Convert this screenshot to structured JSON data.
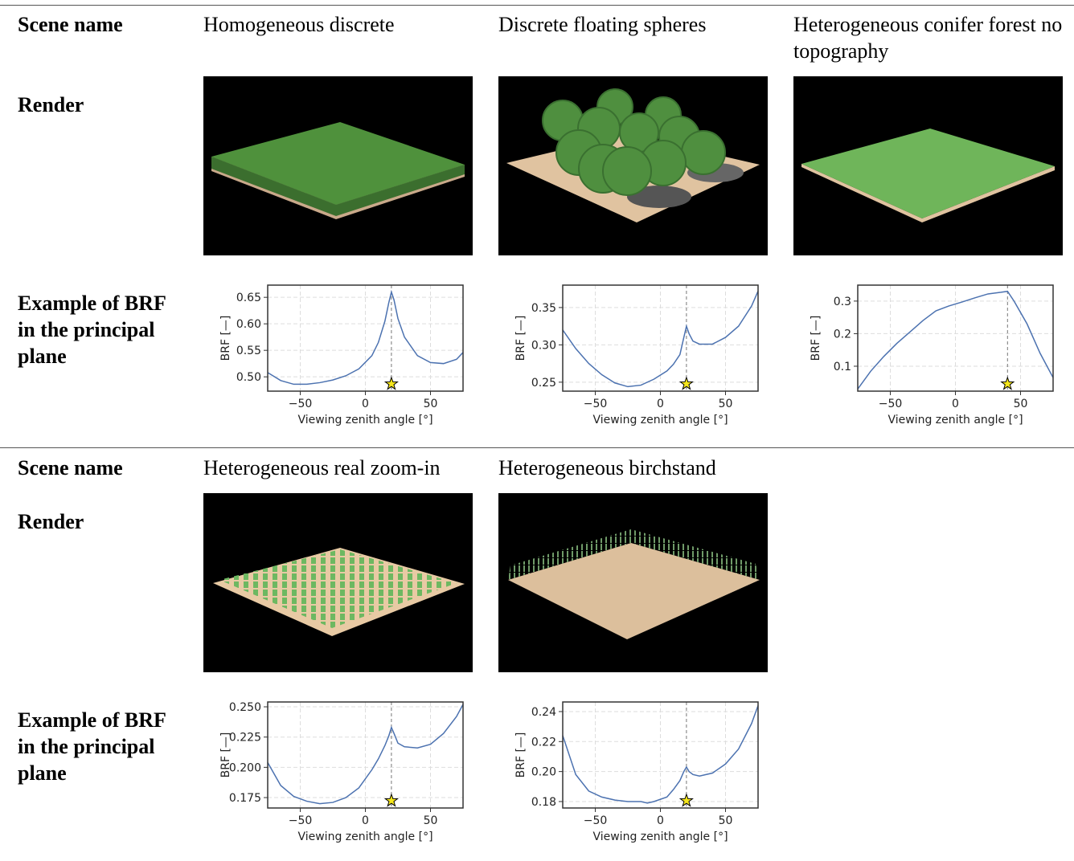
{
  "sections": [
    {
      "row_labels": [
        "Scene name",
        "Render",
        "Example of BRF in the principal plane"
      ],
      "scenes": [
        "Homogeneous discrete",
        "Discrete floating spheres",
        "Heterogeneous conifer forest no topography"
      ]
    },
    {
      "row_labels": [
        "Scene name",
        "Render",
        "Example of BRF in the principal plane"
      ],
      "scenes": [
        "Heterogeneous real zoom-in",
        "Heterogeneous birchstand"
      ]
    }
  ],
  "chart_data": [
    {
      "type": "line",
      "xlabel": "Viewing zenith angle [°]",
      "ylabel": "BRF [—]",
      "grid": true,
      "x": [
        -75,
        -65,
        -55,
        -45,
        -35,
        -25,
        -15,
        -5,
        5,
        10,
        15,
        18,
        20,
        22,
        25,
        30,
        40,
        50,
        60,
        70,
        75
      ],
      "series": [
        {
          "color": "#4c72b0",
          "values": [
            0.508,
            0.493,
            0.486,
            0.486,
            0.489,
            0.494,
            0.502,
            0.515,
            0.54,
            0.565,
            0.605,
            0.64,
            0.66,
            0.645,
            0.61,
            0.575,
            0.54,
            0.527,
            0.525,
            0.533,
            0.546
          ]
        }
      ],
      "vline_x": 20,
      "xlim": [
        -75,
        75
      ],
      "xticks": [
        {
          "value": -50,
          "label": "−50"
        },
        0,
        50
      ],
      "ylim": [
        0.473,
        0.673
      ],
      "yticks": [
        {
          "value": 0.5,
          "label": "0.50"
        },
        0.55,
        {
          "value": 0.6,
          "label": "0.60"
        },
        0.65
      ]
    },
    {
      "type": "line",
      "xlabel": "Viewing zenith angle [°]",
      "ylabel": "BRF [—]",
      "grid": true,
      "x": [
        -75,
        -65,
        -55,
        -45,
        -35,
        -25,
        -15,
        -5,
        5,
        10,
        15,
        18,
        20,
        22,
        25,
        30,
        40,
        50,
        60,
        70,
        75
      ],
      "series": [
        {
          "color": "#4c72b0",
          "values": [
            0.32,
            0.295,
            0.275,
            0.26,
            0.249,
            0.244,
            0.246,
            0.254,
            0.265,
            0.274,
            0.287,
            0.31,
            0.325,
            0.315,
            0.305,
            0.301,
            0.301,
            0.31,
            0.325,
            0.352,
            0.372
          ]
        }
      ],
      "vline_x": 20,
      "xlim": [
        -75,
        75
      ],
      "xticks": [
        {
          "value": -50,
          "label": "−50"
        },
        0,
        50
      ],
      "ylim": [
        0.238,
        0.38
      ],
      "yticks": [
        0.25,
        {
          "value": 0.3,
          "label": "0.30"
        },
        0.35
      ]
    },
    {
      "type": "line",
      "xlabel": "Viewing zenith angle [°]",
      "ylabel": "BRF [—]",
      "grid": true,
      "x": [
        -75,
        -65,
        -55,
        -45,
        -35,
        -25,
        -15,
        -5,
        5,
        15,
        25,
        35,
        40,
        45,
        55,
        65,
        75
      ],
      "series": [
        {
          "color": "#4c72b0",
          "values": [
            0.03,
            0.085,
            0.13,
            0.17,
            0.205,
            0.24,
            0.27,
            0.285,
            0.297,
            0.31,
            0.322,
            0.327,
            0.33,
            0.3,
            0.23,
            0.14,
            0.065
          ]
        }
      ],
      "vline_x": 40,
      "xlim": [
        -75,
        75
      ],
      "xticks": [
        {
          "value": -50,
          "label": "−50"
        },
        0,
        50
      ],
      "ylim": [
        0.0235,
        0.349
      ],
      "yticks": [
        0.1,
        0.2,
        0.3
      ]
    },
    {
      "type": "line",
      "xlabel": "Viewing zenith angle [°]",
      "ylabel": "BRF [—]",
      "grid": true,
      "x": [
        -75,
        -65,
        -55,
        -45,
        -35,
        -25,
        -15,
        -5,
        5,
        10,
        15,
        18,
        20,
        22,
        25,
        30,
        40,
        50,
        60,
        70,
        75
      ],
      "series": [
        {
          "color": "#4c72b0",
          "values": [
            0.204,
            0.185,
            0.176,
            0.172,
            0.17,
            0.171,
            0.175,
            0.183,
            0.198,
            0.207,
            0.218,
            0.226,
            0.233,
            0.228,
            0.22,
            0.217,
            0.216,
            0.219,
            0.228,
            0.242,
            0.252
          ]
        }
      ],
      "vline_x": 20,
      "xlim": [
        -75,
        75
      ],
      "xticks": [
        {
          "value": -50,
          "label": "−50"
        },
        0,
        50
      ],
      "ylim": [
        0.1664,
        0.254
      ],
      "yticks": [
        0.175,
        {
          "value": 0.2,
          "label": "0.200"
        },
        0.225,
        {
          "value": 0.25,
          "label": "0.250"
        }
      ]
    },
    {
      "type": "line",
      "xlabel": "Viewing zenith angle [°]",
      "ylabel": "BRF [—]",
      "grid": true,
      "x": [
        -75,
        -65,
        -55,
        -45,
        -35,
        -25,
        -15,
        -10,
        -5,
        5,
        10,
        15,
        18,
        20,
        22,
        25,
        30,
        40,
        50,
        60,
        70,
        75
      ],
      "series": [
        {
          "color": "#4c72b0",
          "values": [
            0.224,
            0.198,
            0.187,
            0.183,
            0.181,
            0.18,
            0.18,
            0.179,
            0.18,
            0.183,
            0.188,
            0.194,
            0.2,
            0.203,
            0.2,
            0.198,
            0.197,
            0.199,
            0.205,
            0.215,
            0.232,
            0.244
          ]
        }
      ],
      "vline_x": 20,
      "xlim": [
        -75,
        75
      ],
      "xticks": [
        {
          "value": -50,
          "label": "−50"
        },
        0,
        50
      ],
      "ylim": [
        0.1757,
        0.2464
      ],
      "yticks": [
        0.18,
        {
          "value": 0.2,
          "label": "0.20"
        },
        0.22,
        0.24
      ]
    }
  ]
}
